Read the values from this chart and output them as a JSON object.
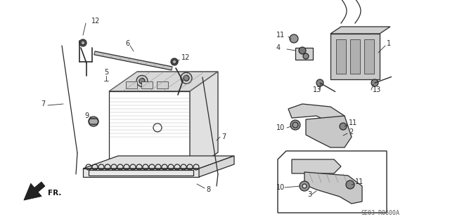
{
  "background_color": "#ffffff",
  "part_code": "SE03-R0600A",
  "line_color": "#2a2a2a",
  "line_width": 0.9
}
